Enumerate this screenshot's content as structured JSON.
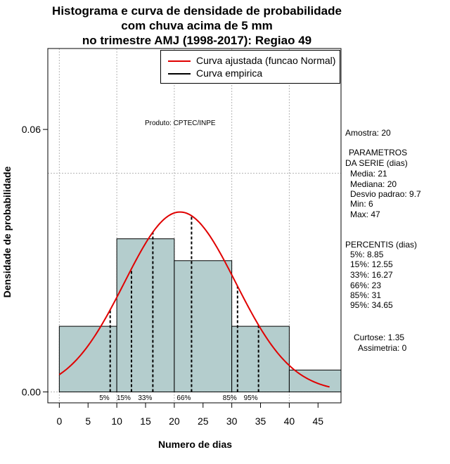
{
  "titles": {
    "line1": "Histograma e curva de densidade de probabilidade",
    "line2": "com chuva acima de 5 mm",
    "line3": "no trimestre AMJ (1998-2017): Regiao 49"
  },
  "credit": "Produto: CPTEC/INPE",
  "legend": {
    "fitted": "Curva ajustada (funcao Normal)",
    "empirical": "Curva empirica"
  },
  "stats": {
    "amostra": "Amostra: 20",
    "param_title1": "PARAMETROS",
    "param_title2": "DA SERIE (dias)",
    "media": "Media: 21",
    "mediana": "Mediana: 20",
    "desvio": "Desvio padrao: 9.7",
    "min": "Min: 6",
    "max": "Max: 47",
    "percentis_title": "PERCENTIS (dias)",
    "p5": "5%: 8.85",
    "p15": "15%: 12.55",
    "p33": "33%: 16.27",
    "p66": "66%: 23",
    "p85": "85%: 31",
    "p95": "95%: 34.65",
    "curtose": "Curtose: 1.35",
    "assimetria": "Assimetria: 0"
  },
  "colors": {
    "bar_fill": "#b4cdcd",
    "fit_curve": "#e00000",
    "grid": "#b4b4b4"
  },
  "chart_data": {
    "type": "bar",
    "title": "Histograma e curva de densidade de probabilidade com chuva acima de 5 mm no trimestre AMJ (1998-2017): Regiao 49",
    "xlabel": "Numero de dias",
    "ylabel": "Densidade de probabilidade",
    "xlim": [
      -2,
      49
    ],
    "ylim": [
      -0.0025,
      0.0785
    ],
    "x_ticks": [
      0,
      5,
      10,
      15,
      20,
      25,
      30,
      35,
      40,
      45
    ],
    "y_ticks": [
      0.0,
      0.06
    ],
    "y_tick_labels": [
      "0.00",
      "0.06"
    ],
    "gridlines_x": [
      0,
      10,
      20,
      30,
      40
    ],
    "gridlines_y": [
      0,
      0.05
    ],
    "histogram": [
      {
        "from": 0,
        "to": 10,
        "density": 0.015
      },
      {
        "from": 10,
        "to": 20,
        "density": 0.035
      },
      {
        "from": 20,
        "to": 30,
        "density": 0.03
      },
      {
        "from": 30,
        "to": 40,
        "density": 0.015
      },
      {
        "from": 40,
        "to": 49,
        "density": 0.005
      }
    ],
    "normal_fit": {
      "mean": 21,
      "sd": 9.7,
      "x_from": 0,
      "x_to": 47
    },
    "percentiles": [
      {
        "label": "5%",
        "value": 8.85
      },
      {
        "label": "15%",
        "value": 12.55
      },
      {
        "label": "33%",
        "value": 16.27
      },
      {
        "label": "66%",
        "value": 23
      },
      {
        "label": "85%",
        "value": 31
      },
      {
        "label": "95%",
        "value": 34.65
      }
    ]
  }
}
